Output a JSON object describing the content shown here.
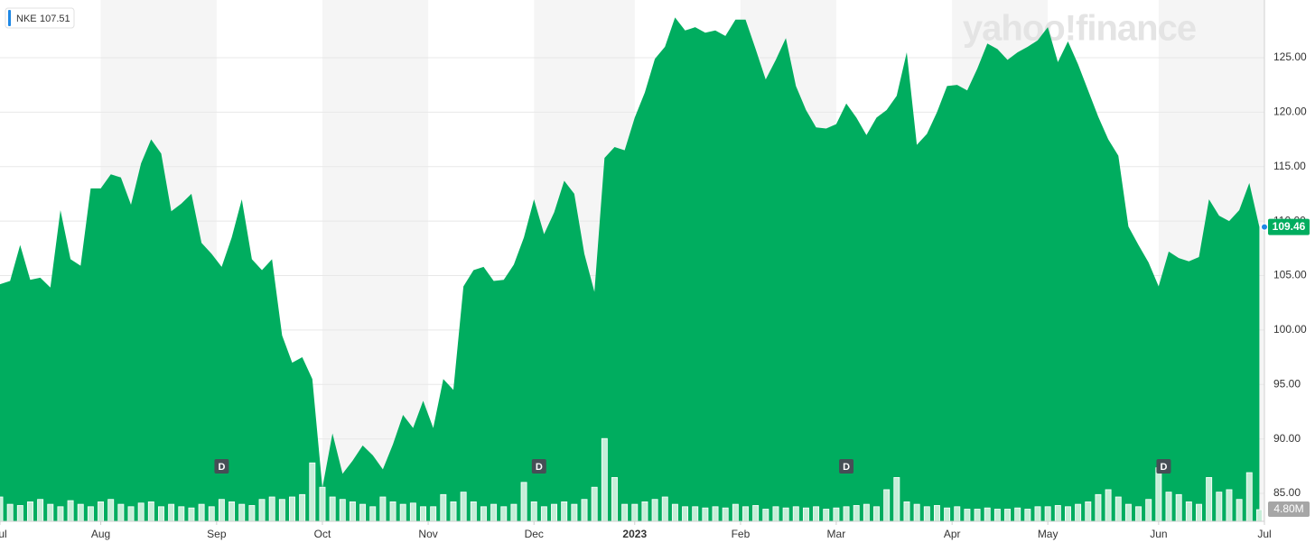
{
  "chart_data": {
    "type": "area",
    "legend_value": 107.51,
    "watermark": "yahoo!finance",
    "x": [
      0,
      2,
      4,
      6,
      8,
      10,
      12,
      14,
      16,
      18,
      20,
      22,
      24,
      26,
      28,
      30,
      32,
      34,
      36,
      38,
      40,
      42,
      44,
      46,
      48,
      50,
      52,
      54,
      56,
      58,
      60,
      62,
      64,
      66,
      68,
      70,
      72,
      74,
      76,
      78,
      80,
      82,
      84,
      86,
      88,
      90,
      92,
      94,
      96,
      98,
      100,
      102,
      104,
      106,
      108,
      110,
      112,
      114,
      116,
      118,
      120,
      122,
      124,
      126,
      128,
      130,
      132,
      134,
      136,
      138,
      140,
      142,
      144,
      146,
      148,
      150,
      152,
      154,
      156,
      158,
      160,
      162,
      164,
      166,
      168,
      170,
      172,
      174,
      176,
      178,
      180,
      182,
      184,
      186,
      188,
      190,
      192,
      194,
      196,
      198,
      200,
      202,
      204,
      206,
      208,
      210,
      212,
      214,
      216,
      218,
      220,
      222,
      224,
      226,
      228,
      230,
      232,
      234,
      236,
      238,
      240,
      242,
      244,
      246,
      248,
      250
    ],
    "xlim": [
      0,
      251
    ],
    "xticks": [
      {
        "value": 0,
        "label": "Jul"
      },
      {
        "value": 20,
        "label": "Aug"
      },
      {
        "value": 43,
        "label": "Sep"
      },
      {
        "value": 64,
        "label": "Oct"
      },
      {
        "value": 85,
        "label": "Nov"
      },
      {
        "value": 106,
        "label": "Dec"
      },
      {
        "value": 126,
        "label": "2023"
      },
      {
        "value": 147,
        "label": "Feb"
      },
      {
        "value": 166,
        "label": "Mar"
      },
      {
        "value": 189,
        "label": "Apr"
      },
      {
        "value": 208,
        "label": "May"
      },
      {
        "value": 230,
        "label": "Jun"
      },
      {
        "value": 251,
        "label": "Jul"
      }
    ],
    "series": [
      {
        "name": "NKE",
        "color": "#00ad5f",
        "values": [
          104.2,
          104.5,
          107.8,
          104.6,
          104.8,
          103.9,
          111.0,
          106.5,
          105.9,
          113.0,
          113.0,
          114.3,
          114.0,
          111.5,
          115.3,
          117.5,
          116.2,
          110.9,
          111.6,
          112.5,
          108.0,
          107.0,
          105.8,
          108.5,
          112.0,
          106.5,
          105.5,
          106.5,
          99.5,
          97.0,
          97.5,
          95.5,
          85.5,
          90.5,
          86.8,
          88.0,
          89.4,
          88.5,
          87.2,
          89.5,
          92.2,
          91.0,
          93.5,
          91.0,
          95.5,
          94.5,
          104.0,
          105.5,
          105.8,
          104.5,
          104.6,
          106.0,
          108.5,
          112.0,
          108.8,
          110.8,
          113.7,
          112.5,
          107.0,
          103.5,
          115.8,
          116.8,
          116.5,
          119.5,
          121.8,
          124.9,
          126.0,
          128.7,
          127.5,
          127.8,
          127.3,
          127.5,
          127.0,
          128.5,
          128.5,
          125.8,
          123.0,
          124.8,
          126.8,
          122.4,
          120.2,
          118.6,
          118.5,
          118.9,
          120.8,
          119.5,
          117.9,
          119.5,
          120.2,
          121.5,
          125.5,
          117.0,
          118.0,
          120.0,
          122.4,
          122.5,
          122.0,
          124.0,
          126.3,
          125.8,
          124.8,
          125.5,
          126.0,
          126.6,
          127.8,
          124.6,
          126.5,
          124.4,
          122.0,
          119.6,
          117.5,
          116.0,
          109.5,
          107.8,
          106.2,
          104.0,
          107.2,
          106.6,
          106.3,
          106.7,
          112.0,
          110.5,
          110.0,
          111.0,
          113.5,
          109.46
        ]
      }
    ],
    "volume": {
      "color": "#c6eed8",
      "label": "4.80M",
      "values": [
        10,
        7,
        6.5,
        8,
        9,
        7,
        6,
        8.5,
        7,
        6,
        8,
        9,
        7,
        6,
        7.5,
        8,
        6,
        7,
        6,
        5.5,
        7,
        6,
        9,
        8,
        7,
        6.5,
        9,
        10,
        9,
        10,
        11,
        24,
        14,
        10,
        9,
        8,
        7,
        6,
        10,
        8,
        7,
        7.5,
        6,
        6,
        11,
        8,
        12,
        8,
        6,
        7,
        6,
        7,
        16,
        8,
        6,
        7,
        8,
        7,
        9,
        14,
        34,
        18,
        7,
        7,
        8,
        9,
        10,
        7,
        6,
        6,
        5.5,
        6,
        5.5,
        7,
        6,
        6.5,
        5,
        6,
        5.5,
        6,
        5.5,
        6,
        5,
        5.5,
        6,
        6.5,
        7,
        6,
        13,
        18,
        8,
        7,
        6,
        6.5,
        5.5,
        6,
        5,
        5,
        5.5,
        5,
        5,
        5.5,
        5,
        6,
        6,
        6.5,
        6,
        7,
        8,
        11,
        13,
        10,
        7,
        6,
        9,
        22,
        12,
        11,
        8,
        7,
        18,
        12,
        13,
        9,
        20,
        4.8
      ]
    },
    "ylim": [
      82.43,
      130.3
    ],
    "yticks": [
      {
        "value": 85,
        "label": "85.00"
      },
      {
        "value": 90,
        "label": "90.00"
      },
      {
        "value": 95,
        "label": "95.00"
      },
      {
        "value": 100,
        "label": "100.00"
      },
      {
        "value": 105,
        "label": "105.00"
      },
      {
        "value": 110,
        "label": "110.00"
      },
      {
        "value": 115,
        "label": "115.00"
      },
      {
        "value": 120,
        "label": "120.00"
      },
      {
        "value": 125,
        "label": "125.00"
      }
    ],
    "grid": true,
    "events": [
      {
        "x": 44,
        "label": "D"
      },
      {
        "x": 107,
        "label": "D"
      },
      {
        "x": 168,
        "label": "D"
      },
      {
        "x": 231,
        "label": "D"
      }
    ]
  }
}
